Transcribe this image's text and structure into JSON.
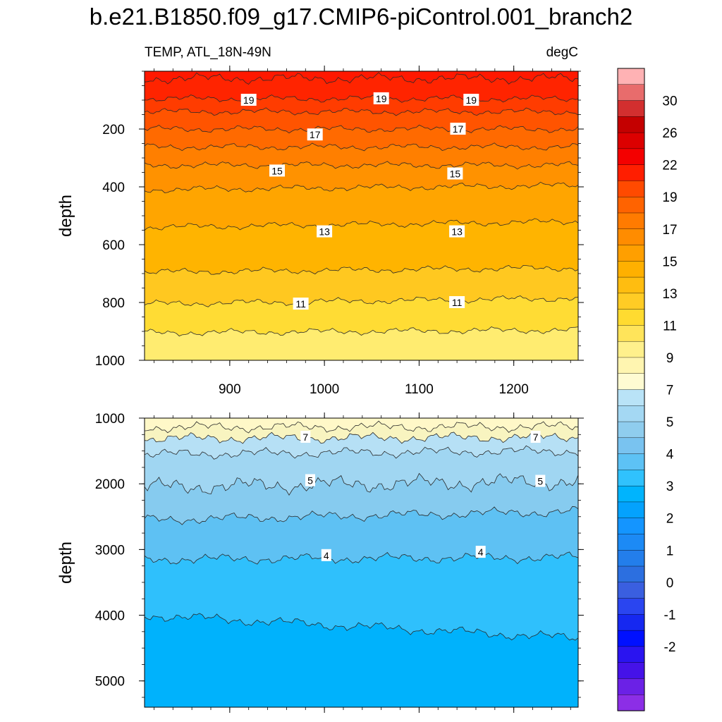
{
  "title": "b.e21.B1850.f09_g17.CMIP6-piControl.001_branch2",
  "subtitle_left": "TEMP, ATL_18N-49N",
  "subtitle_right": "degC",
  "chart_data": [
    {
      "type": "contour",
      "panel": "upper",
      "variable": "TEMP",
      "region": "ATL_18N-49N",
      "units": "degC",
      "xlabel": "",
      "ylabel": "depth",
      "xlim": [
        810,
        1268
      ],
      "ylim": [
        0,
        1000
      ],
      "y_reversed": true,
      "xticks": [
        900,
        1000,
        1100,
        1200
      ],
      "yticks": [
        200,
        400,
        600,
        800,
        1000
      ],
      "grid": false,
      "contour_levels": [
        {
          "level": 20,
          "depth": [
            25,
            25
          ]
        },
        {
          "level": 19,
          "depth": [
            95,
            95
          ]
        },
        {
          "level": 18,
          "depth": [
            140,
            140
          ]
        },
        {
          "level": 17,
          "depth": [
            200,
            200
          ]
        },
        {
          "level": 16,
          "depth": [
            262,
            262
          ]
        },
        {
          "level": 15,
          "depth": [
            325,
            325
          ]
        },
        {
          "level": 14,
          "depth": [
            410,
            395
          ]
        },
        {
          "level": 13,
          "depth": [
            540,
            520
          ]
        },
        {
          "level": 12,
          "depth": [
            695,
            680
          ]
        },
        {
          "level": 11,
          "depth": [
            805,
            785
          ]
        },
        {
          "level": 10,
          "depth": [
            905,
            895
          ]
        }
      ],
      "contour_labels": [
        {
          "text": "19",
          "x": 920,
          "depth": 100
        },
        {
          "text": "19",
          "x": 1060,
          "depth": 95
        },
        {
          "text": "19",
          "x": 1155,
          "depth": 100
        },
        {
          "text": "17",
          "x": 990,
          "depth": 220
        },
        {
          "text": "17",
          "x": 1141,
          "depth": 200
        },
        {
          "text": "15",
          "x": 950,
          "depth": 345
        },
        {
          "text": "15",
          "x": 1138,
          "depth": 355
        },
        {
          "text": "13",
          "x": 1000,
          "depth": 555
        },
        {
          "text": "13",
          "x": 1140,
          "depth": 555
        },
        {
          "text": "11",
          "x": 975,
          "depth": 805
        },
        {
          "text": "11",
          "x": 1140,
          "depth": 800
        }
      ]
    },
    {
      "type": "contour",
      "panel": "lower",
      "variable": "TEMP",
      "region": "ATL_18N-49N",
      "units": "degC",
      "xlabel": "",
      "ylabel": "depth",
      "xlim": [
        810,
        1268
      ],
      "ylim": [
        1000,
        5400
      ],
      "y_reversed": true,
      "yticks": [
        1000,
        2000,
        3000,
        4000,
        5000
      ],
      "grid": false,
      "contour_levels": [
        {
          "level": 8,
          "depth": [
            1140,
            1130
          ]
        },
        {
          "level": 7,
          "depth": [
            1310,
            1290
          ]
        },
        {
          "level": 6,
          "depth": [
            1550,
            1500
          ]
        },
        {
          "level": 5,
          "depth": [
            2050,
            1960
          ]
        },
        {
          "level": 4.5,
          "depth": [
            2550,
            2420
          ]
        },
        {
          "level": 4,
          "depth": [
            3150,
            3120
          ]
        },
        {
          "level": 3.5,
          "depth": [
            4000,
            4350
          ]
        }
      ],
      "contour_labels": [
        {
          "text": "7",
          "x": 980,
          "depth": 1290
        },
        {
          "text": "7",
          "x": 1223,
          "depth": 1290
        },
        {
          "text": "5",
          "x": 985,
          "depth": 1950
        },
        {
          "text": "5",
          "x": 1228,
          "depth": 1960
        },
        {
          "text": "4",
          "x": 1002,
          "depth": 3090
        },
        {
          "text": "4",
          "x": 1165,
          "depth": 3040
        }
      ]
    }
  ],
  "colorbar": {
    "label_values": [
      "30",
      "26",
      "22",
      "19",
      "17",
      "15",
      "13",
      "11",
      "9",
      "7",
      "5",
      "4",
      "3",
      "2",
      "1",
      "0",
      "-1",
      "-2"
    ],
    "colors_top_to_bottom": [
      "#ffb2b4",
      "#e86c6c",
      "#d22f2f",
      "#c40000",
      "#dc0000",
      "#f40000",
      "#ff1e00",
      "#ff4a00",
      "#ff6300",
      "#ff7b00",
      "#ff8c00",
      "#ff9f00",
      "#ffb000",
      "#ffbd10",
      "#ffcc25",
      "#ffdb30",
      "#ffe45a",
      "#fff08c",
      "#fff5b0",
      "#fffbd2",
      "#b9e3f7",
      "#a4d8f3",
      "#8fcdee",
      "#79c3f0",
      "#5dc2f5",
      "#30c2fd",
      "#00b4fd",
      "#04a2fd",
      "#1495ff",
      "#1c8af5",
      "#237eeb",
      "#2c6fe0",
      "#3a5fe0",
      "#2a45f0",
      "#1628f0",
      "#0010ff",
      "#2a14f0",
      "#4512e8",
      "#6b21e6",
      "#8c2ee6"
    ]
  }
}
